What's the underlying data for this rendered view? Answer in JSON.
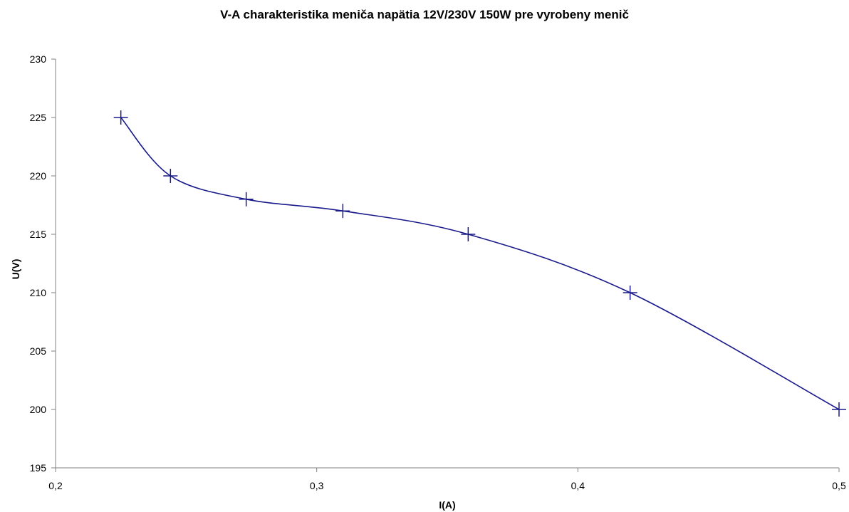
{
  "chart_data": {
    "type": "scatter",
    "title": "V-A charakteristika meniča napätia 12V/230V 150W pre vyrobeny menič",
    "xlabel": "I(A)",
    "ylabel": "U(V)",
    "xlim": [
      0.2,
      0.5
    ],
    "ylim": [
      195,
      230
    ],
    "x_ticks": [
      0.2,
      0.3,
      0.4,
      0.5
    ],
    "x_tick_labels": [
      "0,2",
      "0,3",
      "0,4",
      "0,5"
    ],
    "y_ticks": [
      195,
      200,
      205,
      210,
      215,
      220,
      225,
      230
    ],
    "y_tick_labels": [
      "195",
      "200",
      "205",
      "210",
      "215",
      "220",
      "225",
      "230"
    ],
    "grid": false,
    "legend": "none",
    "smooth_line": true,
    "marker": "plus",
    "color": "#1a1a8c",
    "series": [
      {
        "x": [
          0.225,
          0.244,
          0.273,
          0.31,
          0.358,
          0.42,
          0.5
        ],
        "y": [
          225,
          220,
          218,
          217,
          215,
          210,
          200
        ]
      }
    ]
  }
}
